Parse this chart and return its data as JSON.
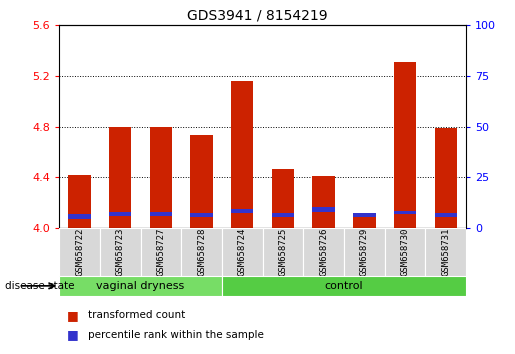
{
  "title": "GDS3941 / 8154219",
  "samples": [
    "GSM658722",
    "GSM658723",
    "GSM658727",
    "GSM658728",
    "GSM658724",
    "GSM658725",
    "GSM658726",
    "GSM658729",
    "GSM658730",
    "GSM658731"
  ],
  "transformed_count": [
    4.42,
    4.8,
    4.8,
    4.73,
    5.16,
    4.47,
    4.41,
    4.12,
    5.31,
    4.79
  ],
  "blue_bottom": [
    4.07,
    4.1,
    4.1,
    4.09,
    4.12,
    4.09,
    4.13,
    4.09,
    4.11,
    4.09
  ],
  "blue_top": [
    4.11,
    4.13,
    4.13,
    4.12,
    4.15,
    4.12,
    4.17,
    4.12,
    4.14,
    4.12
  ],
  "ylim_left": [
    4.0,
    5.6
  ],
  "ylim_right": [
    0,
    100
  ],
  "yticks_left": [
    4.0,
    4.4,
    4.8,
    5.2,
    5.6
  ],
  "yticks_right": [
    0,
    25,
    50,
    75,
    100
  ],
  "bar_color": "#cc2200",
  "blue_color": "#3333cc",
  "bar_width": 0.55,
  "group_spans": [
    {
      "label": "vaginal dryness",
      "start": 0,
      "end": 3,
      "color": "#77dd66"
    },
    {
      "label": "control",
      "start": 4,
      "end": 9,
      "color": "#55cc44"
    }
  ],
  "group_label": "disease state",
  "legend_labels": [
    "transformed count",
    "percentile rank within the sample"
  ],
  "background_color": "#ffffff",
  "grid_yticks": [
    4.4,
    4.8,
    5.2
  ]
}
